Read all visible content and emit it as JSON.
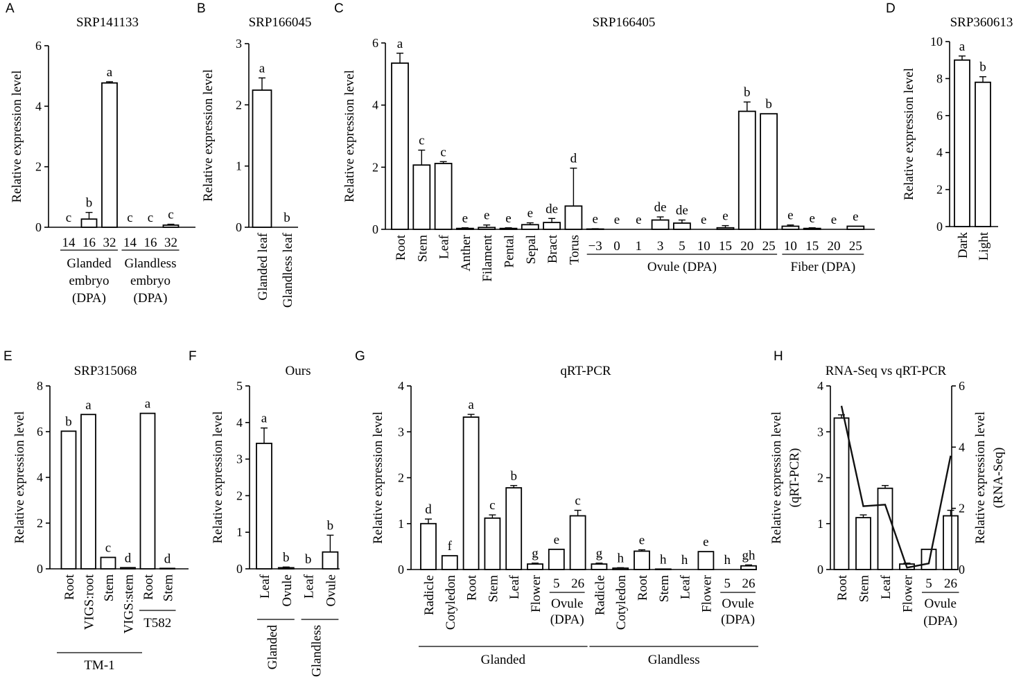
{
  "chart_data": [
    {
      "panel": "A",
      "type": "bar",
      "title": "SRP141133",
      "ylabel": "Relative expression level",
      "ylim": [
        0,
        6
      ],
      "yticks": [
        0,
        2,
        4,
        6
      ],
      "categories": [
        "14",
        "16",
        "32",
        "14",
        "16",
        "32"
      ],
      "values": [
        0,
        0.27,
        4.77,
        0,
        0,
        0.07
      ],
      "errors": [
        0,
        0.22,
        0.04,
        0,
        0,
        0.03
      ],
      "letters": [
        "c",
        "b",
        "a",
        "c",
        "c",
        "c"
      ],
      "groups": [
        {
          "lines": [
            "Glanded",
            "embryo",
            "(DPA)"
          ],
          "from": 0,
          "to": 2
        },
        {
          "lines": [
            "Glandless",
            "embryo",
            "(DPA)"
          ],
          "from": 3,
          "to": 5
        }
      ]
    },
    {
      "panel": "B",
      "type": "bar",
      "title": "SRP166045",
      "ylabel": "Relative expression level",
      "ylim": [
        0,
        3
      ],
      "yticks": [
        0,
        1,
        2,
        3
      ],
      "categories": [
        "Glanded leaf",
        "Glandless leaf"
      ],
      "values": [
        2.24,
        0
      ],
      "errors": [
        0.2,
        0
      ],
      "letters": [
        "a",
        "b"
      ],
      "groups": []
    },
    {
      "panel": "C",
      "type": "bar",
      "title": "SRP166405",
      "ylabel": "Relative expression level",
      "ylim": [
        0,
        6
      ],
      "yticks": [
        0,
        2,
        4,
        6
      ],
      "categories": [
        "Root",
        "Stem",
        "Leaf",
        "Anther",
        "Filament",
        "Pental",
        "Sepal",
        "Bract",
        "Torus",
        "−3",
        "0",
        "1",
        "3",
        "5",
        "10",
        "15",
        "20",
        "25",
        "10",
        "15",
        "20",
        "25"
      ],
      "values": [
        5.35,
        2.07,
        2.12,
        0.03,
        0.06,
        0.03,
        0.15,
        0.22,
        0.75,
        0.01,
        0,
        0,
        0.3,
        0.2,
        0,
        0.05,
        3.8,
        3.72,
        0.1,
        0.03,
        0,
        0.1
      ],
      "errors": [
        0.32,
        0.48,
        0.06,
        0.02,
        0.08,
        0.02,
        0.06,
        0.13,
        1.22,
        0.01,
        0,
        0,
        0.1,
        0.1,
        0,
        0.07,
        0.3,
        0,
        0.04,
        0.02,
        0,
        0
      ],
      "letters": [
        "a",
        "c",
        "c",
        "e",
        "e",
        "e",
        "e",
        "de",
        "d",
        "e",
        "e",
        "e",
        "de",
        "de",
        "e",
        "e",
        "b",
        "b",
        "e",
        "e",
        "e",
        "e"
      ],
      "groups": [
        {
          "lines": [
            "Ovule (DPA)"
          ],
          "from": 9,
          "to": 17
        },
        {
          "lines": [
            "Fiber (DPA)"
          ],
          "from": 18,
          "to": 21
        }
      ]
    },
    {
      "panel": "D",
      "type": "bar",
      "title": "SRP360613",
      "ylabel": "Relative expression level",
      "ylim": [
        0,
        10
      ],
      "yticks": [
        0,
        2,
        4,
        6,
        8,
        10
      ],
      "categories": [
        "Dark",
        "Light"
      ],
      "values": [
        9.0,
        7.8
      ],
      "errors": [
        0.22,
        0.3
      ],
      "letters": [
        "a",
        "b"
      ],
      "groups": []
    },
    {
      "panel": "E",
      "type": "bar",
      "title": "SRP315068",
      "ylabel": "Relative expression level",
      "ylim": [
        0,
        8
      ],
      "yticks": [
        0,
        2,
        4,
        6,
        8
      ],
      "categories": [
        "Root",
        "VIGS:root",
        "Stem",
        "VIGS:stem",
        "Root",
        "Stem"
      ],
      "values": [
        6.02,
        6.75,
        0.5,
        0.05,
        6.8,
        0.02
      ],
      "errors": [
        0,
        0,
        0,
        0,
        0,
        0
      ],
      "letters": [
        "b",
        "a",
        "c",
        "d",
        "a",
        "d"
      ],
      "groups": [
        {
          "lines": [
            "TM-1"
          ],
          "from": 0,
          "to": 3
        },
        {
          "lines": [
            "T582"
          ],
          "from": 4,
          "to": 5
        }
      ]
    },
    {
      "panel": "F",
      "type": "bar",
      "title": "Ours",
      "ylabel": "Relative expression level",
      "ylim": [
        0,
        5
      ],
      "yticks": [
        0,
        1,
        2,
        3,
        4,
        5
      ],
      "categories": [
        "Leaf",
        "Ovule",
        "Leaf",
        "Ovule"
      ],
      "values": [
        3.43,
        0.03,
        0,
        0.46
      ],
      "errors": [
        0.42,
        0.02,
        0,
        0.46
      ],
      "letters": [
        "a",
        "b",
        "b",
        "b"
      ],
      "groups": [
        {
          "lines": [
            "Glanded"
          ],
          "from": 0,
          "to": 1
        },
        {
          "lines": [
            "Glandless"
          ],
          "from": 2,
          "to": 3
        }
      ]
    },
    {
      "panel": "G",
      "type": "bar",
      "title": "qRT-PCR",
      "ylabel": "Relative expression level",
      "ylim": [
        0,
        4
      ],
      "yticks": [
        0,
        1,
        2,
        3,
        4
      ],
      "categories": [
        "Radicle",
        "Cotyledon",
        "Root",
        "Stem",
        "Leaf",
        "Flower",
        "5",
        "26",
        "Radicle",
        "Cotyledon",
        "Root",
        "Stem",
        "Leaf",
        "Flower",
        "5",
        "26"
      ],
      "values": [
        1.0,
        0.3,
        3.32,
        1.12,
        1.78,
        0.12,
        0.44,
        1.17,
        0.12,
        0.03,
        0.4,
        0.01,
        0,
        0.39,
        0,
        0.08
      ],
      "errors": [
        0.1,
        0,
        0.06,
        0.07,
        0.05,
        0.02,
        0,
        0.12,
        0.02,
        0.01,
        0.03,
        0,
        0,
        0,
        0,
        0.02
      ],
      "letters": [
        "d",
        "f",
        "a",
        "c",
        "b",
        "g",
        "e",
        "c",
        "g",
        "h",
        "e",
        "h",
        "h",
        "e",
        "h",
        "gh"
      ],
      "subgroups": [
        {
          "lines": [
            "Ovule",
            "(DPA)"
          ],
          "from": 6,
          "to": 7
        },
        {
          "lines": [
            "Ovule",
            "(DPA)"
          ],
          "from": 14,
          "to": 15
        }
      ],
      "groups": [
        {
          "lines": [
            "Glanded"
          ],
          "from": 0,
          "to": 7
        },
        {
          "lines": [
            "Glandless"
          ],
          "from": 8,
          "to": 15
        }
      ]
    },
    {
      "panel": "H",
      "type": "bar",
      "title": "RNA-Seq vs qRT-PCR",
      "ylabel": "Relative expression level\n(qRT-PCR)",
      "y2label": "Relative expression level\n(RNA-Seq)",
      "ylim": [
        0,
        4
      ],
      "yticks": [
        0,
        1,
        2,
        3,
        4
      ],
      "y2lim": [
        0,
        6
      ],
      "y2ticks": [
        0,
        2,
        4,
        6
      ],
      "categories": [
        "Root",
        "Stem",
        "Leaf",
        "Flower",
        "5",
        "26"
      ],
      "values": [
        3.3,
        1.13,
        1.77,
        0.12,
        0.44,
        1.17
      ],
      "errors": [
        0.07,
        0.06,
        0.06,
        0.02,
        0,
        0.12
      ],
      "line": {
        "axis": "y2",
        "values": [
          5.35,
          2.07,
          2.12,
          0.06,
          0.2,
          3.72
        ]
      },
      "letters": [],
      "groups": [
        {
          "lines": [
            "Ovule",
            "(DPA)"
          ],
          "from": 4,
          "to": 5
        }
      ]
    }
  ]
}
